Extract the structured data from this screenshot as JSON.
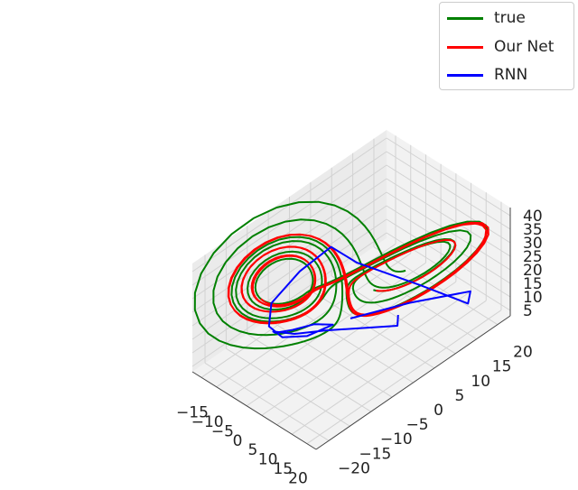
{
  "chart_data": {
    "type": "line",
    "projection": "3d",
    "title": "",
    "xlabel": "",
    "ylabel": "",
    "zlabel": "",
    "xlim": [
      -18,
      23
    ],
    "ylim": [
      -23,
      23
    ],
    "zlim": [
      3,
      43
    ],
    "x_ticks": [
      "−15",
      "−10",
      "−5",
      "0",
      "5",
      "10",
      "15",
      "20"
    ],
    "y_ticks": [
      "−20",
      "−15",
      "−10",
      "−5",
      "0",
      "5",
      "10",
      "15",
      "20"
    ],
    "z_ticks": [
      "5",
      "10",
      "15",
      "20",
      "25",
      "30",
      "35",
      "40"
    ],
    "grid": true,
    "legend_position": "top-right",
    "series": [
      {
        "name": "true",
        "color": "#008000"
      },
      {
        "name": "Our Net",
        "color": "#ff0000"
      },
      {
        "name": "RNN",
        "color": "#0000ff"
      }
    ]
  }
}
